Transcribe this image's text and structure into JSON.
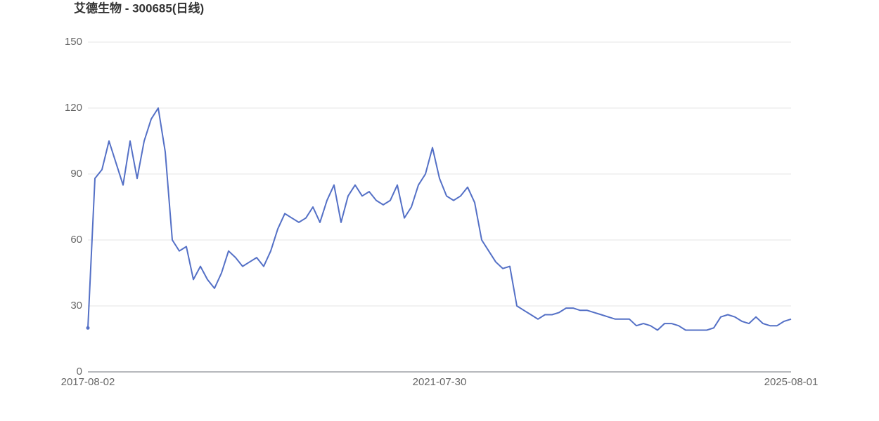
{
  "chart_data": {
    "type": "line",
    "title": "艾德生物 - 300685(日线)",
    "categories": [
      "2017-08-02",
      null,
      null,
      null,
      null,
      null,
      null,
      null,
      null,
      null,
      null,
      null,
      null,
      null,
      null,
      null,
      null,
      null,
      null,
      null,
      null,
      null,
      null,
      null,
      null,
      null,
      null,
      null,
      null,
      null,
      null,
      null,
      null,
      null,
      null,
      null,
      null,
      null,
      null,
      null,
      null,
      null,
      null,
      null,
      null,
      null,
      null,
      null,
      null,
      null,
      "2021-07-30",
      null,
      null,
      null,
      null,
      null,
      null,
      null,
      null,
      null,
      null,
      null,
      null,
      null,
      null,
      null,
      null,
      null,
      null,
      null,
      null,
      null,
      null,
      null,
      null,
      null,
      null,
      null,
      null,
      null,
      null,
      null,
      null,
      null,
      null,
      null,
      null,
      null,
      null,
      null,
      null,
      null,
      null,
      null,
      null,
      null,
      null,
      null,
      null,
      null,
      "2025-08-01"
    ],
    "series": [
      {
        "color": "#5470c6",
        "values": [
          20,
          88,
          92,
          105,
          95,
          85,
          105,
          88,
          105,
          115,
          120,
          100,
          60,
          55,
          57,
          42,
          48,
          42,
          38,
          45,
          55,
          52,
          48,
          50,
          52,
          48,
          55,
          65,
          72,
          70,
          68,
          70,
          75,
          68,
          78,
          85,
          68,
          80,
          85,
          80,
          82,
          78,
          76,
          78,
          85,
          70,
          75,
          85,
          90,
          102,
          88,
          80,
          78,
          80,
          84,
          77,
          60,
          55,
          50,
          47,
          48,
          30,
          28,
          26,
          24,
          26,
          26,
          27,
          29,
          29,
          28,
          28,
          27,
          26,
          25,
          24,
          24,
          24,
          21,
          22,
          21,
          19,
          22,
          22,
          21,
          19,
          19,
          19,
          19,
          20,
          25,
          26,
          25,
          23,
          22,
          25,
          22,
          21,
          21,
          23,
          24
        ]
      }
    ],
    "ylim": [
      0,
      150
    ],
    "yticks": [
      0,
      30,
      60,
      90,
      120,
      150
    ],
    "grid": true
  }
}
